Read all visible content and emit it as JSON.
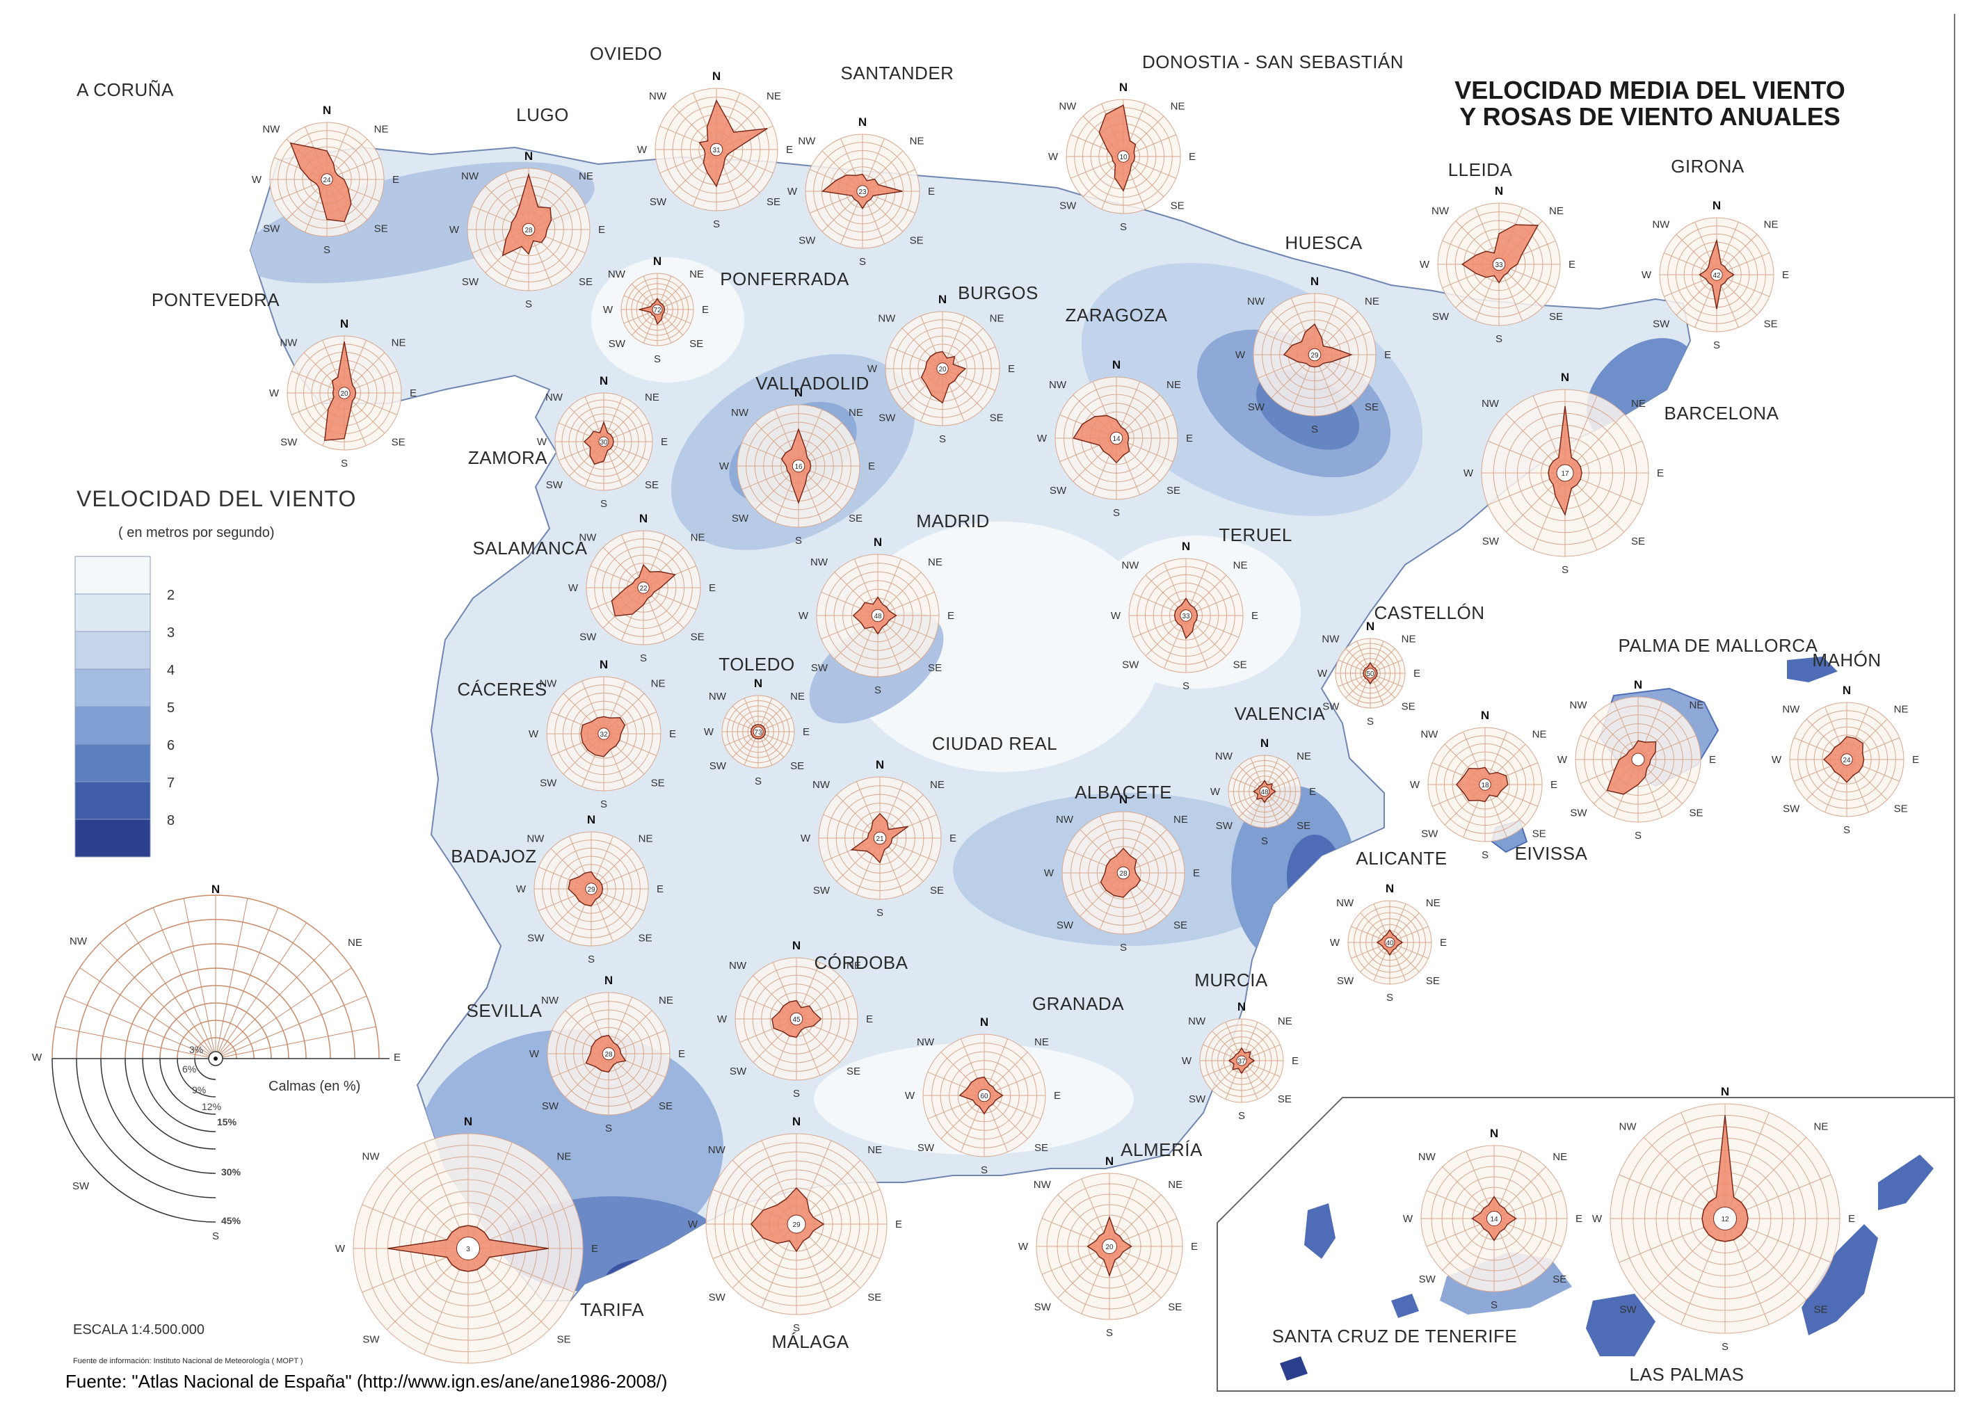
{
  "title": {
    "line1": "VELOCIDAD MEDIA DEL VIENTO",
    "line2": "Y ROSAS DE VIENTO ANUALES"
  },
  "legend": {
    "title": "VELOCIDAD DEL VIENTO",
    "subtitle": "( en metros por segundo)",
    "classes": [
      {
        "value": "2",
        "color": "#f4f8fb"
      },
      {
        "value": "3",
        "color": "#dfe9f4"
      },
      {
        "value": "4",
        "color": "#c5d6ec"
      },
      {
        "value": "5",
        "color": "#a4bde1"
      },
      {
        "value": "6",
        "color": "#7f9fd2"
      },
      {
        "value": "7",
        "color": "#5b7fbf"
      },
      {
        "value": "8",
        "color": "#3f5da8"
      },
      {
        "value": "",
        "color": "#2c3f8c"
      }
    ]
  },
  "rose_key": {
    "directions": {
      "n": "N",
      "ne": "NE",
      "e": "E",
      "nw": "NW",
      "w": "W",
      "sw": "SW",
      "s": "S"
    },
    "rings": [
      "3%",
      "6%",
      "9%",
      "12%",
      "15%",
      "30%",
      "45%"
    ],
    "calm_label": "Calmas (en %)"
  },
  "dirs": {
    "n": "N",
    "ne": "NE",
    "e": "E",
    "se": "SE",
    "s": "S",
    "sw": "SW",
    "w": "W",
    "nw": "NW"
  },
  "stations": [
    {
      "name": "A CORUÑA",
      "calm": "24"
    },
    {
      "name": "LUGO",
      "calm": "28"
    },
    {
      "name": "OVIEDO",
      "calm": "31"
    },
    {
      "name": "SANTANDER",
      "calm": "23"
    },
    {
      "name": "DONOSTIA - SAN SEBASTIÁN",
      "calm": "10"
    },
    {
      "name": "LLEIDA",
      "calm": "33"
    },
    {
      "name": "GIRONA",
      "calm": "42"
    },
    {
      "name": "PONTEVEDRA",
      "calm": "20"
    },
    {
      "name": "PONFERRADA",
      "calm": "72"
    },
    {
      "name": "BURGOS",
      "calm": "20"
    },
    {
      "name": "ZARAGOZA",
      "calm": "14"
    },
    {
      "name": "HUESCA",
      "calm": "29"
    },
    {
      "name": "BARCELONA",
      "calm": "17"
    },
    {
      "name": "ZAMORA",
      "calm": "30"
    },
    {
      "name": "VALLADOLID",
      "calm": "16"
    },
    {
      "name": "SALAMANCA",
      "calm": "22"
    },
    {
      "name": "MADRID",
      "calm": "48"
    },
    {
      "name": "TERUEL",
      "calm": "33"
    },
    {
      "name": "CASTELLÓN",
      "calm": "50"
    },
    {
      "name": "TOLEDO",
      "calm": "73"
    },
    {
      "name": "CÁCERES",
      "calm": "32"
    },
    {
      "name": "PALMA DE MALLORCA",
      "calm": ""
    },
    {
      "name": "MAHÓN",
      "calm": "24"
    },
    {
      "name": "CIUDAD REAL",
      "calm": "21"
    },
    {
      "name": "VALENCIA",
      "calm": "48"
    },
    {
      "name": "EIVISSA",
      "calm": "18"
    },
    {
      "name": "ALBACETE",
      "calm": "28"
    },
    {
      "name": "BADAJOZ",
      "calm": "29"
    },
    {
      "name": "ALICANTE",
      "calm": "40"
    },
    {
      "name": "CÓRDOBA",
      "calm": "45"
    },
    {
      "name": "SEVILLA",
      "calm": "28"
    },
    {
      "name": "GRANADA",
      "calm": "60"
    },
    {
      "name": "MURCIA",
      "calm": "37"
    },
    {
      "name": "TARIFA",
      "calm": "3"
    },
    {
      "name": "MÁLAGA",
      "calm": "29"
    },
    {
      "name": "ALMERÍA",
      "calm": "20"
    },
    {
      "name": "SANTA CRUZ DE TENERIFE",
      "calm": "14"
    },
    {
      "name": "LAS PALMAS",
      "calm": "12"
    }
  ],
  "scale": "ESCALA  1:4.500.000",
  "info_source": "Fuente de información: Instituto Nacional de Meteorología ( MOPT )",
  "source": "Fuente: \"Atlas Nacional de España\" (http://www.ign.es/ane/ane1986-2008/)"
}
